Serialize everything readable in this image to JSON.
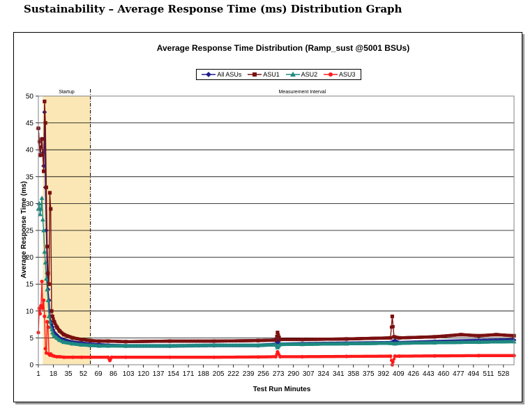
{
  "page": {
    "heading": "Sustainability – Average Response Time (ms) Distribution Graph"
  },
  "colors": {
    "All ASUs": "#1f1f8f",
    "ASU1": "#7a1010",
    "ASU2": "#1f8a80",
    "ASU3": "#ff1a1a",
    "startup_band": "#fbe7b5"
  },
  "chart_data": {
    "type": "line",
    "title": "Average Response Time Distribution (Ramp_sust @5001 BSUs)",
    "xlabel": "Test Run Minutes",
    "ylabel": "Average Response Time (ms)",
    "ylim": [
      0,
      50
    ],
    "yticks": [
      0,
      5,
      10,
      15,
      20,
      25,
      30,
      35,
      40,
      45,
      50
    ],
    "xlim": [
      1,
      540
    ],
    "xticks": [
      1,
      18,
      35,
      52,
      69,
      86,
      103,
      120,
      137,
      154,
      171,
      188,
      205,
      222,
      239,
      256,
      273,
      290,
      307,
      324,
      341,
      358,
      375,
      392,
      409,
      426,
      443,
      460,
      477,
      494,
      511,
      528
    ],
    "grid": "horizontal",
    "legend_position": "top-center",
    "regions": [
      {
        "label": "Startup",
        "start": 1,
        "end": 60
      },
      {
        "label": "Measurement Interval",
        "start": 60,
        "end": 540
      }
    ],
    "series": [
      {
        "name": "All ASUs",
        "marker": "diamond",
        "x": [
          1,
          3,
          5,
          7,
          8,
          9,
          10,
          11,
          12,
          13,
          14,
          15,
          17,
          19,
          22,
          25,
          30,
          40,
          50,
          60,
          70,
          80,
          100,
          150,
          200,
          250,
          270,
          272,
          275,
          300,
          350,
          400,
          405,
          410,
          450,
          500,
          540
        ],
        "y": [
          44,
          39,
          42,
          37,
          47,
          33,
          25,
          17,
          14,
          12,
          10,
          8,
          7,
          6,
          5.5,
          5,
          4.6,
          4.2,
          4,
          3.8,
          3.7,
          3.6,
          3.5,
          3.5,
          3.6,
          3.6,
          3.8,
          4.5,
          3.8,
          3.9,
          4,
          4.1,
          4.5,
          4.1,
          4.3,
          4.5,
          4.6
        ]
      },
      {
        "name": "ASU1",
        "marker": "square",
        "x": [
          1,
          3,
          5,
          7,
          8,
          9,
          10,
          11,
          12,
          13,
          14,
          15,
          16,
          17,
          19,
          22,
          25,
          30,
          40,
          50,
          60,
          70,
          80,
          100,
          150,
          200,
          250,
          270,
          272,
          275,
          300,
          350,
          400,
          402,
          404,
          410,
          450,
          480,
          500,
          520,
          540
        ],
        "y": [
          44,
          39,
          42,
          36,
          49,
          45,
          33,
          22,
          17,
          15,
          32,
          29,
          10,
          9,
          8,
          7,
          6.3,
          5.6,
          5,
          4.7,
          4.5,
          4.4,
          4.4,
          4.3,
          4.4,
          4.4,
          4.5,
          4.6,
          6,
          4.7,
          4.7,
          4.8,
          5,
          9,
          5.2,
          5,
          5.2,
          5.6,
          5.4,
          5.6,
          5.4
        ]
      },
      {
        "name": "ASU2",
        "marker": "triangle",
        "x": [
          1,
          2,
          3,
          4,
          5,
          6,
          7,
          8,
          9,
          10,
          11,
          12,
          13,
          14,
          15,
          17,
          19,
          22,
          25,
          30,
          40,
          50,
          60,
          70,
          80,
          100,
          150,
          200,
          250,
          270,
          272,
          275,
          300,
          350,
          400,
          405,
          410,
          450,
          500,
          540
        ],
        "y": [
          29,
          30,
          28,
          29,
          31,
          27,
          25,
          21,
          19,
          16,
          14,
          12,
          9,
          8,
          7,
          6,
          5.4,
          5,
          4.6,
          4.2,
          3.9,
          3.7,
          3.6,
          3.5,
          3.5,
          3.5,
          3.5,
          3.6,
          3.6,
          3.7,
          3.2,
          3.8,
          3.8,
          3.9,
          4,
          3.9,
          4,
          4.1,
          4.2,
          4.3
        ]
      },
      {
        "name": "ASU3",
        "marker": "circle",
        "x": [
          1,
          2,
          3,
          4,
          5,
          6,
          7,
          8,
          9,
          10,
          11,
          12,
          13,
          14,
          15,
          17,
          19,
          22,
          25,
          30,
          40,
          50,
          60,
          80,
          82,
          84,
          100,
          150,
          200,
          250,
          270,
          272,
          275,
          300,
          350,
          400,
          402,
          405,
          410,
          450,
          500,
          540
        ],
        "y": [
          6,
          10.5,
          9.5,
          11,
          15.5,
          10.5,
          12,
          9,
          3,
          2.2,
          8,
          7,
          2,
          1.8,
          2,
          1.7,
          1.6,
          1.5,
          1.5,
          1.4,
          1.4,
          1.4,
          1.4,
          1.4,
          0.8,
          1.4,
          1.4,
          1.4,
          1.4,
          1.45,
          1.5,
          2.4,
          1.5,
          1.5,
          1.55,
          1.6,
          0,
          1.6,
          1.6,
          1.65,
          1.7,
          1.7
        ]
      }
    ]
  }
}
